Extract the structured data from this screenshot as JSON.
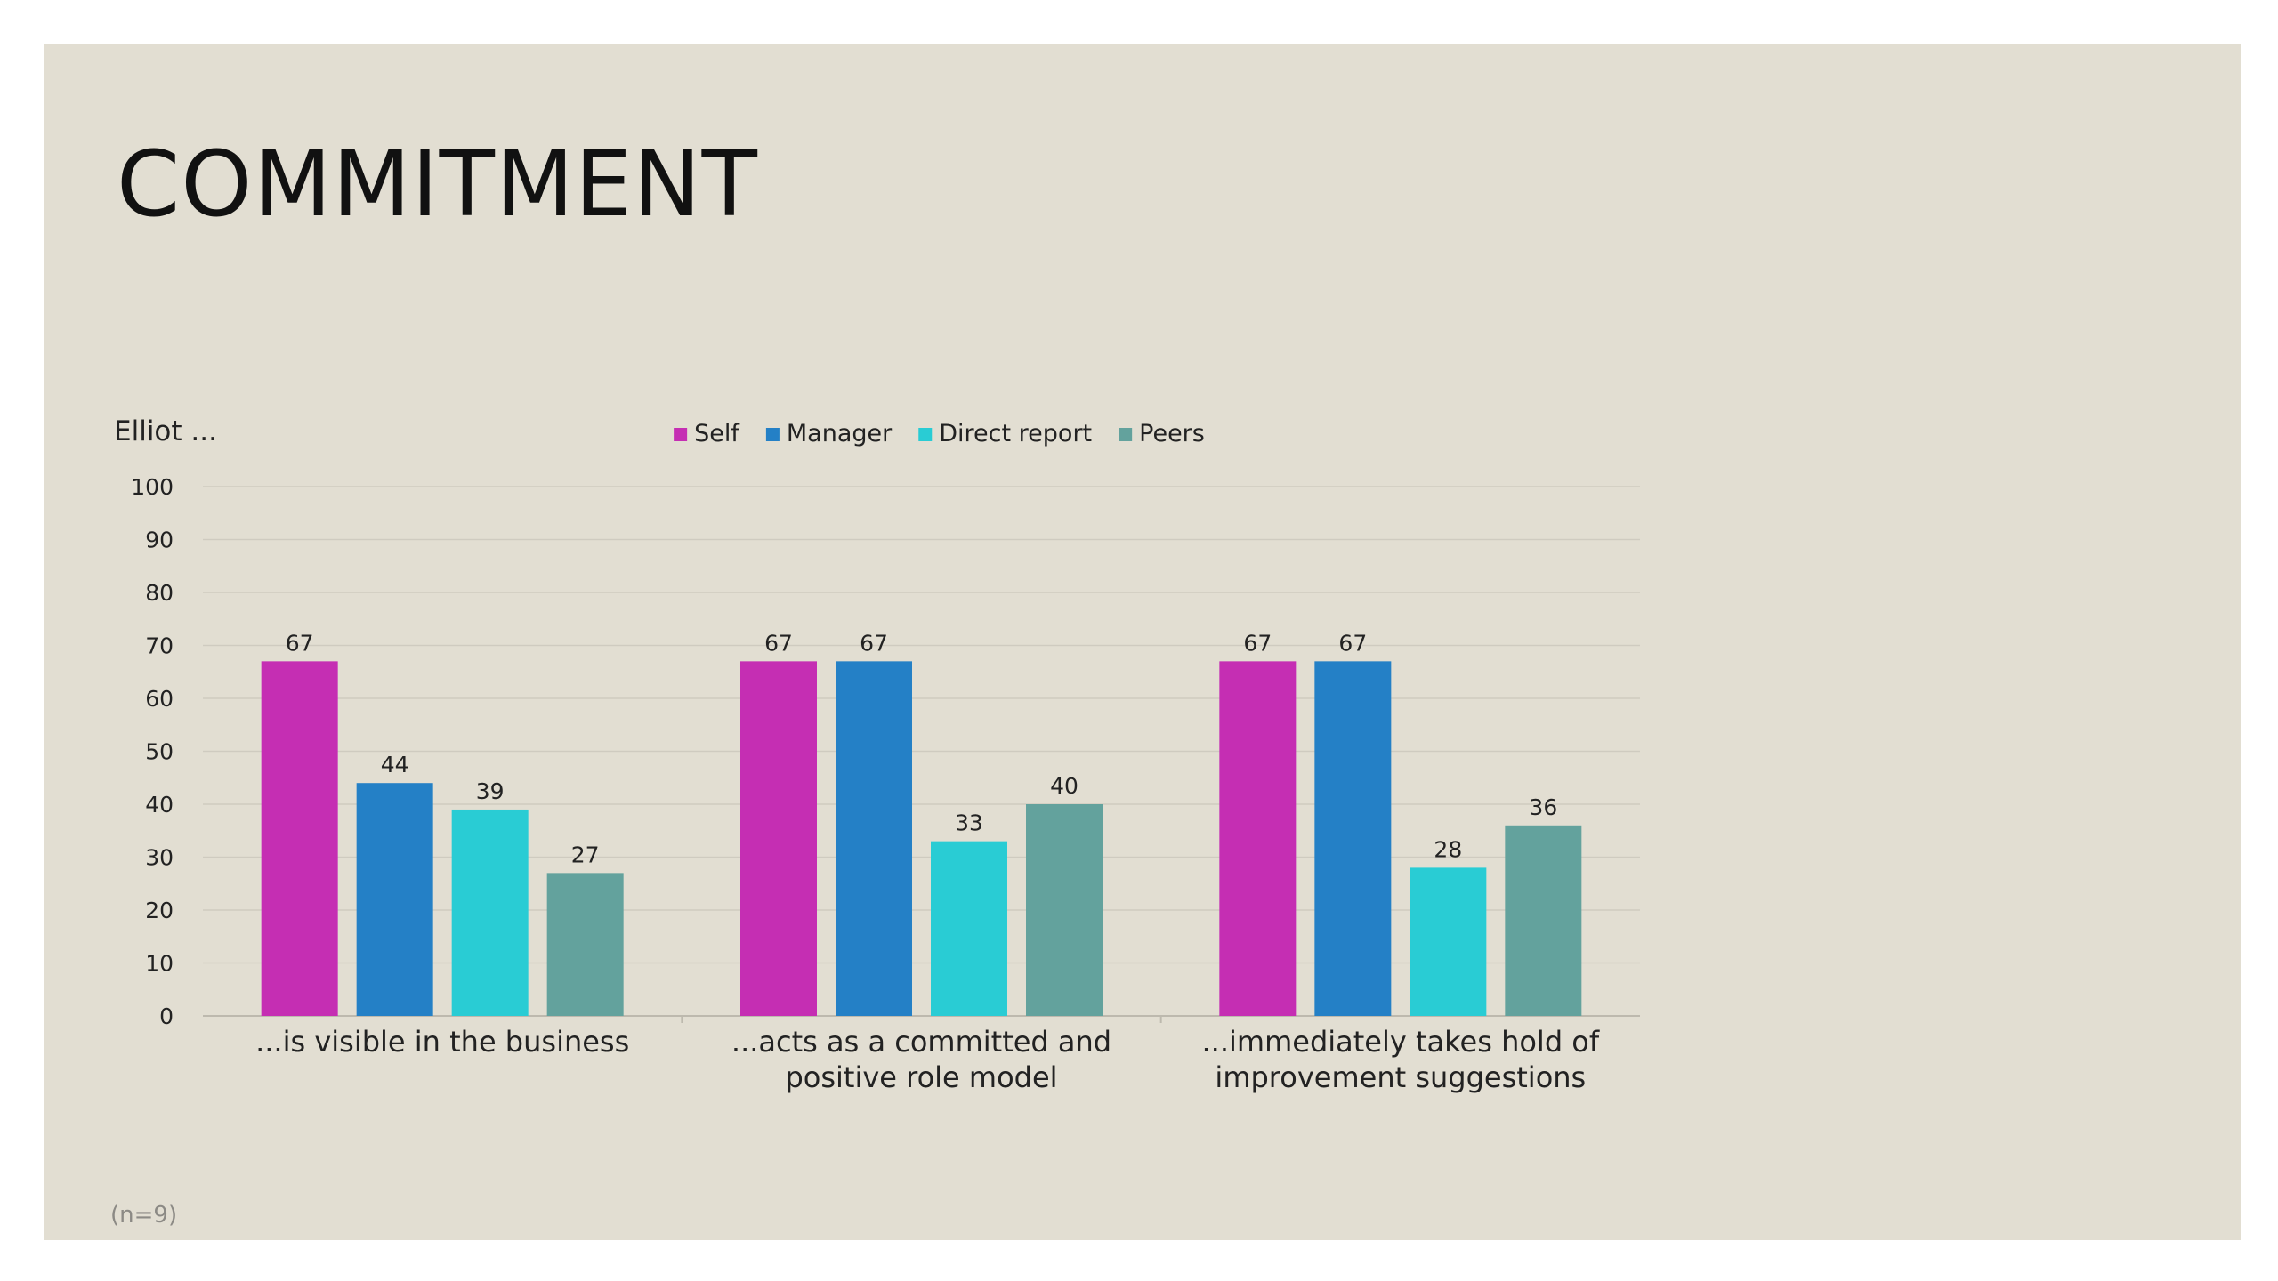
{
  "slide": {
    "title": "COMMITMENT",
    "subject": "Elliot ...",
    "footnote": "(n=9)"
  },
  "chart_data": {
    "type": "bar",
    "categories": [
      [
        "...is visible in the business"
      ],
      [
        "...acts as a committed and",
        "positive role model"
      ],
      [
        "...immediately takes hold of",
        "improvement suggestions"
      ]
    ],
    "series": [
      {
        "name": "Self",
        "color": "#c52eb3",
        "values": [
          67,
          67,
          67
        ]
      },
      {
        "name": "Manager",
        "color": "#2480c6",
        "values": [
          44,
          67,
          67
        ]
      },
      {
        "name": "Direct report",
        "color": "#29ccd4",
        "values": [
          39,
          33,
          28
        ]
      },
      {
        "name": "Peers",
        "color": "#63a29d",
        "values": [
          27,
          40,
          36
        ]
      }
    ],
    "yticks": [
      0,
      10,
      20,
      30,
      40,
      50,
      60,
      70,
      80,
      90,
      100
    ],
    "ylim": [
      0,
      100
    ],
    "grid": true,
    "legend": "top",
    "data_labels": true
  }
}
